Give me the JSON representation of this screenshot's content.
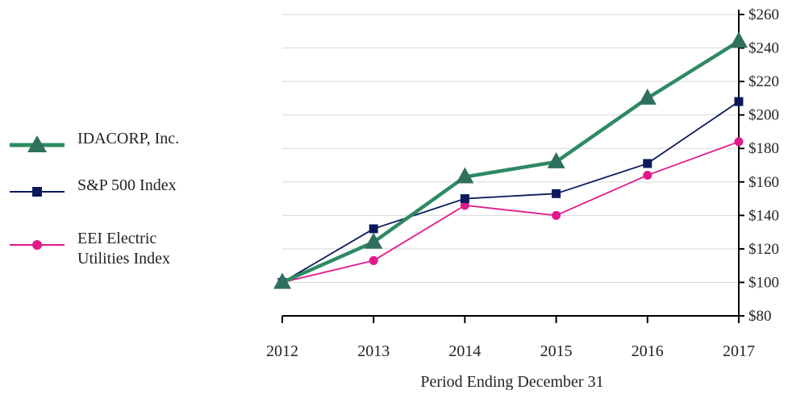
{
  "chart_data": {
    "type": "line",
    "categories": [
      "2012",
      "2013",
      "2014",
      "2015",
      "2016",
      "2017"
    ],
    "series": [
      {
        "name": "IDACORP, Inc.",
        "values": [
          100,
          124,
          163,
          172,
          210,
          244
        ],
        "color": "#2e8a63",
        "marker": "triangle"
      },
      {
        "name": "S&P 500 Index",
        "values": [
          100,
          132,
          150,
          153,
          171,
          208
        ],
        "color": "#0b1a5c",
        "marker": "square"
      },
      {
        "name": "EEI Electric\nUtilities Index",
        "values": [
          100,
          113,
          146,
          140,
          164,
          184
        ],
        "color": "#e0198a",
        "marker": "circle"
      }
    ],
    "xlabel": "Period Ending December 31",
    "ylabel": "",
    "ylim": [
      80,
      260
    ],
    "yticks": [
      "$80",
      "$100",
      "$120",
      "$140",
      "$160",
      "$180",
      "$200",
      "$220",
      "$240",
      "$260"
    ],
    "y_axis_side": "right",
    "grid": true,
    "legend_position": "left"
  }
}
